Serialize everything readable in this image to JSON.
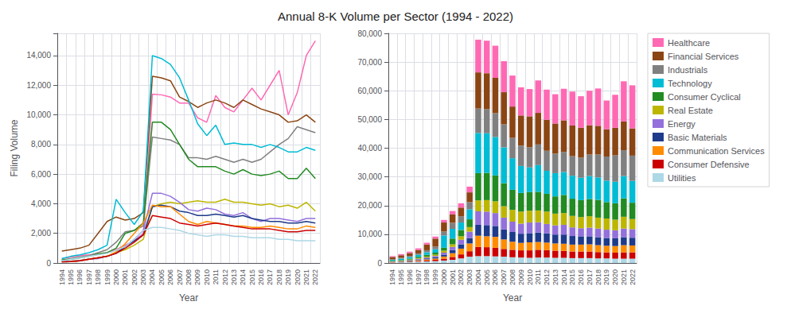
{
  "chart_data": [
    {
      "type": "line",
      "title": "Annual 8-K Volume per Sector (1994 - 2022)",
      "xlabel": "Year",
      "ylabel": "Filing Volume",
      "categories": [
        "1994",
        "1995",
        "1996",
        "1997",
        "1998",
        "1999",
        "2000",
        "2001",
        "2002",
        "2003",
        "2004",
        "2005",
        "2006",
        "2007",
        "2008",
        "2009",
        "2010",
        "2011",
        "2012",
        "2013",
        "2014",
        "2015",
        "2016",
        "2017",
        "2018",
        "2019",
        "2020",
        "2021",
        "2022"
      ],
      "series": [
        {
          "name": "Healthcare",
          "color": "#ff69b4",
          "values": [
            300,
            400,
            500,
            550,
            600,
            700,
            900,
            1200,
            1500,
            2000,
            11400,
            11350,
            11200,
            10800,
            10800,
            9800,
            9500,
            11300,
            10500,
            10200,
            11000,
            11800,
            11000,
            12000,
            13000,
            10000,
            11500,
            14000,
            15000
          ]
        },
        {
          "name": "Financial Services",
          "color": "#8b4513",
          "values": [
            800,
            900,
            1000,
            1200,
            2000,
            2800,
            3100,
            2900,
            3000,
            3400,
            12600,
            12500,
            12300,
            11200,
            10900,
            10500,
            10800,
            11000,
            10800,
            10500,
            11000,
            10700,
            10400,
            10200,
            10000,
            9500,
            9600,
            10000,
            9500
          ]
        },
        {
          "name": "Industrials",
          "color": "#808080",
          "values": [
            200,
            300,
            400,
            500,
            700,
            900,
            1400,
            2100,
            2200,
            2500,
            8500,
            8400,
            8300,
            8000,
            7100,
            7100,
            7000,
            7200,
            7000,
            6800,
            7000,
            6800,
            7000,
            7500,
            8000,
            8400,
            9200,
            9000,
            8800
          ]
        },
        {
          "name": "Technology",
          "color": "#00bcd4",
          "values": [
            300,
            450,
            550,
            700,
            900,
            1200,
            4300,
            3400,
            2600,
            3500,
            14000,
            13800,
            13400,
            12500,
            11000,
            9400,
            8600,
            9300,
            8000,
            8100,
            8000,
            8000,
            7800,
            8000,
            7800,
            7500,
            7500,
            7800,
            7600
          ]
        },
        {
          "name": "Consumer Cyclical",
          "color": "#228b22",
          "values": [
            200,
            250,
            350,
            450,
            600,
            700,
            1000,
            2000,
            2200,
            2700,
            9500,
            9500,
            9000,
            8000,
            7000,
            6500,
            6500,
            6500,
            6200,
            6000,
            6300,
            6000,
            5900,
            6000,
            6200,
            5700,
            5700,
            6400,
            5700
          ]
        },
        {
          "name": "Real Estate",
          "color": "#bdb600",
          "values": [
            100,
            120,
            180,
            250,
            350,
            450,
            700,
            900,
            1200,
            1600,
            3800,
            4000,
            4100,
            4000,
            4100,
            4200,
            4100,
            4100,
            4300,
            4100,
            4100,
            4000,
            3900,
            4000,
            3800,
            3900,
            3700,
            4100,
            3500
          ]
        },
        {
          "name": "Energy",
          "color": "#9370db",
          "values": [
            100,
            120,
            180,
            250,
            300,
            450,
            700,
            1100,
            1600,
            2200,
            4700,
            4700,
            4500,
            4100,
            3600,
            3500,
            3700,
            3600,
            3300,
            3200,
            3400,
            3000,
            2800,
            3000,
            3000,
            2900,
            2800,
            3000,
            3000
          ]
        },
        {
          "name": "Basic Materials",
          "color": "#1e3a8a",
          "values": [
            80,
            100,
            150,
            250,
            350,
            450,
            650,
            1100,
            1500,
            1900,
            3800,
            3900,
            3800,
            3500,
            3400,
            3200,
            3200,
            3300,
            3200,
            3100,
            3200,
            3000,
            2900,
            2800,
            2800,
            2700,
            2700,
            2800,
            2700
          ]
        },
        {
          "name": "Communication Services",
          "color": "#ff8c00",
          "values": [
            80,
            100,
            150,
            250,
            350,
            450,
            750,
            1300,
            2000,
            2700,
            3900,
            3800,
            3800,
            3300,
            2800,
            2600,
            2800,
            2700,
            2600,
            2500,
            2500,
            2400,
            2400,
            2500,
            2400,
            2300,
            2300,
            2500,
            2400
          ]
        },
        {
          "name": "Consumer Defensive",
          "color": "#cc0000",
          "values": [
            80,
            100,
            150,
            250,
            350,
            450,
            650,
            1000,
            1400,
            1900,
            3200,
            3100,
            3000,
            2700,
            2600,
            2500,
            2600,
            2700,
            2600,
            2500,
            2400,
            2300,
            2300,
            2300,
            2200,
            2100,
            2100,
            2200,
            2200
          ]
        },
        {
          "name": "Utilities",
          "color": "#add8e6",
          "values": [
            150,
            250,
            350,
            450,
            550,
            650,
            850,
            1100,
            1600,
            2200,
            2400,
            2400,
            2300,
            2200,
            2000,
            1900,
            1800,
            1900,
            1900,
            1800,
            1800,
            1700,
            1700,
            1700,
            1600,
            1600,
            1500,
            1500,
            1500
          ]
        }
      ],
      "ylim": [
        0,
        15500
      ],
      "yticks": [
        0,
        {
          "value": 2000,
          "label": "2,000"
        },
        {
          "value": 4000,
          "label": "4,000"
        },
        {
          "value": 6000,
          "label": "6,000"
        },
        {
          "value": 8000,
          "label": "8,000"
        },
        {
          "value": 10000,
          "label": "10,000"
        },
        {
          "value": 12000,
          "label": "12,000"
        },
        {
          "value": 14000,
          "label": "14,000"
        }
      ],
      "grid": true
    },
    {
      "type": "bar",
      "stacked": true,
      "xlabel": "Year",
      "categories": [
        "1994",
        "1995",
        "1996",
        "1997",
        "1998",
        "1999",
        "2000",
        "2001",
        "2002",
        "2003",
        "2004",
        "2005",
        "2006",
        "2007",
        "2008",
        "2009",
        "2010",
        "2011",
        "2012",
        "2013",
        "2014",
        "2015",
        "2016",
        "2017",
        "2018",
        "2019",
        "2020",
        "2021",
        "2022"
      ],
      "series": [
        {
          "name": "Utilities",
          "color": "#add8e6",
          "values": [
            150,
            250,
            350,
            450,
            550,
            650,
            850,
            1100,
            1600,
            2200,
            2400,
            2400,
            2300,
            2200,
            2000,
            1900,
            1800,
            1900,
            1900,
            1800,
            1800,
            1700,
            1700,
            1700,
            1600,
            1600,
            1500,
            1500,
            1500
          ]
        },
        {
          "name": "Consumer Defensive",
          "color": "#cc0000",
          "values": [
            80,
            100,
            150,
            250,
            350,
            450,
            650,
            1000,
            1400,
            1900,
            3200,
            3100,
            3000,
            2700,
            2600,
            2500,
            2600,
            2700,
            2600,
            2500,
            2400,
            2300,
            2300,
            2300,
            2200,
            2100,
            2100,
            2200,
            2200
          ]
        },
        {
          "name": "Communication Services",
          "color": "#ff8c00",
          "values": [
            80,
            100,
            150,
            250,
            350,
            450,
            750,
            1300,
            2000,
            2700,
            3900,
            3800,
            3800,
            3300,
            2800,
            2600,
            2800,
            2700,
            2600,
            2500,
            2500,
            2400,
            2400,
            2500,
            2400,
            2300,
            2300,
            2500,
            2400
          ]
        },
        {
          "name": "Basic Materials",
          "color": "#1e3a8a",
          "values": [
            80,
            100,
            150,
            250,
            350,
            450,
            650,
            1100,
            1500,
            1900,
            3800,
            3900,
            3800,
            3500,
            3400,
            3200,
            3200,
            3300,
            3200,
            3100,
            3200,
            3000,
            2900,
            2800,
            2800,
            2700,
            2700,
            2800,
            2700
          ]
        },
        {
          "name": "Energy",
          "color": "#9370db",
          "values": [
            100,
            120,
            180,
            250,
            300,
            450,
            700,
            1100,
            1600,
            2200,
            4700,
            4700,
            4500,
            4100,
            3600,
            3500,
            3700,
            3600,
            3300,
            3200,
            3400,
            3000,
            2800,
            3000,
            3000,
            2900,
            2800,
            3000,
            3000
          ]
        },
        {
          "name": "Real Estate",
          "color": "#bdb600",
          "values": [
            100,
            120,
            180,
            250,
            350,
            450,
            700,
            900,
            1200,
            1600,
            3800,
            4000,
            4100,
            4000,
            4100,
            4200,
            4100,
            4100,
            4300,
            4100,
            4100,
            4000,
            3900,
            4000,
            3800,
            3900,
            3700,
            4100,
            3500
          ]
        },
        {
          "name": "Consumer Cyclical",
          "color": "#228b22",
          "values": [
            200,
            250,
            350,
            450,
            600,
            700,
            1000,
            2000,
            2200,
            2700,
            9500,
            9500,
            9000,
            8000,
            7000,
            6500,
            6500,
            6500,
            6200,
            6000,
            6300,
            6000,
            5900,
            6000,
            6200,
            5700,
            5700,
            6400,
            5700
          ]
        },
        {
          "name": "Technology",
          "color": "#00bcd4",
          "values": [
            300,
            450,
            550,
            700,
            900,
            1200,
            4300,
            3400,
            2600,
            3500,
            14000,
            13800,
            13400,
            12500,
            11000,
            9400,
            8600,
            9300,
            8000,
            8100,
            8000,
            8000,
            7800,
            8000,
            7800,
            7500,
            7500,
            7800,
            7600
          ]
        },
        {
          "name": "Industrials",
          "color": "#808080",
          "values": [
            200,
            300,
            400,
            500,
            700,
            900,
            1400,
            2100,
            2200,
            2500,
            8500,
            8400,
            8300,
            8000,
            7100,
            7100,
            7000,
            7200,
            7000,
            6800,
            7000,
            6800,
            7000,
            7500,
            8000,
            8400,
            9200,
            9000,
            8800
          ]
        },
        {
          "name": "Financial Services",
          "color": "#8b4513",
          "values": [
            800,
            900,
            1000,
            1200,
            2000,
            2800,
            3100,
            2900,
            3000,
            3400,
            12600,
            12500,
            12300,
            11200,
            10900,
            10500,
            10800,
            11000,
            10800,
            10500,
            11000,
            10700,
            10400,
            10200,
            10000,
            9500,
            9600,
            10000,
            9500
          ]
        },
        {
          "name": "Healthcare",
          "color": "#ff69b4",
          "values": [
            300,
            400,
            500,
            550,
            600,
            700,
            900,
            1200,
            1500,
            2000,
            11400,
            11350,
            11200,
            10800,
            10800,
            9800,
            9500,
            11300,
            10500,
            10200,
            11000,
            11800,
            11000,
            12000,
            13000,
            10000,
            11500,
            14000,
            15000
          ]
        }
      ],
      "ylim": [
        0,
        80000
      ],
      "yticks": [
        0,
        {
          "value": 10000,
          "label": "10,000"
        },
        {
          "value": 20000,
          "label": "20,000"
        },
        {
          "value": 30000,
          "label": "30,000"
        },
        {
          "value": 40000,
          "label": "40,000"
        },
        {
          "value": 50000,
          "label": "50,000"
        },
        {
          "value": 60000,
          "label": "60,000"
        },
        {
          "value": 70000,
          "label": "70,000"
        },
        {
          "value": 80000,
          "label": "80,000"
        }
      ],
      "grid": true,
      "legend": "right"
    }
  ]
}
